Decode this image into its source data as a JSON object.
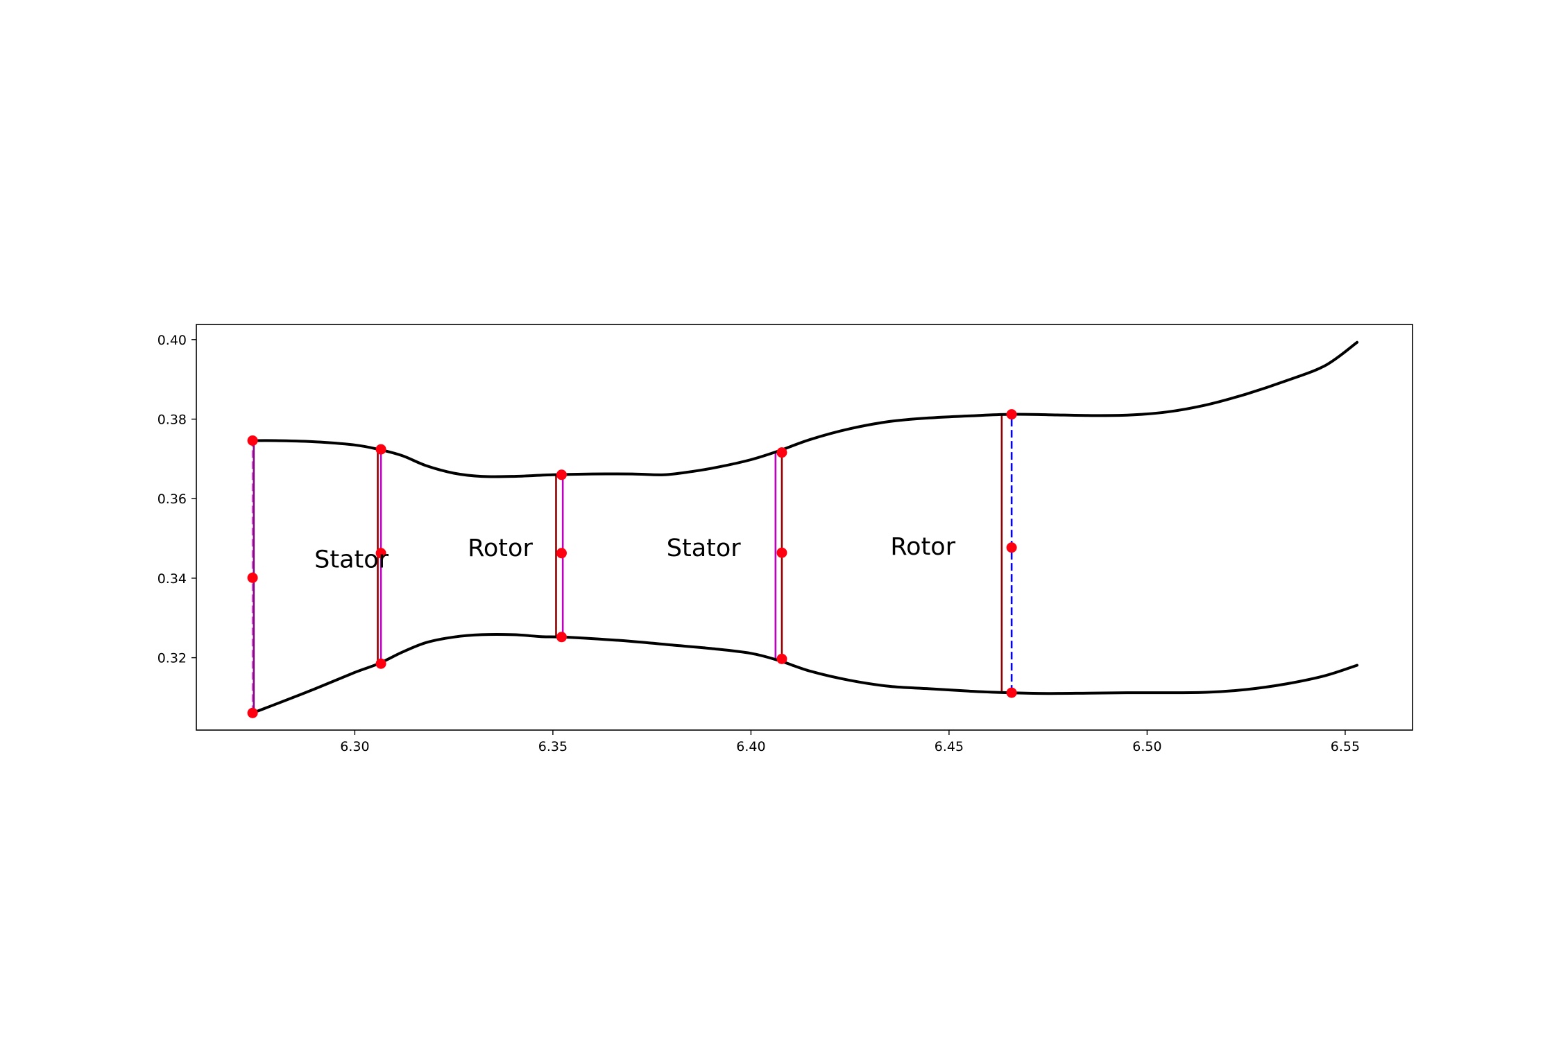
{
  "chart_data": {
    "type": "line",
    "title": "",
    "xlabel": "",
    "ylabel": "",
    "xlim": [
      6.26,
      6.567
    ],
    "ylim": [
      0.3018,
      0.4038
    ],
    "grid": false,
    "x_ticks": [
      {
        "value": 6.3,
        "label": "6.30"
      },
      {
        "value": 6.35,
        "label": "6.35"
      },
      {
        "value": 6.4,
        "label": "6.40"
      },
      {
        "value": 6.45,
        "label": "6.45"
      },
      {
        "value": 6.5,
        "label": "6.50"
      },
      {
        "value": 6.55,
        "label": "6.55"
      }
    ],
    "y_ticks": [
      {
        "value": 0.32,
        "label": "0.32"
      },
      {
        "value": 0.34,
        "label": "0.34"
      },
      {
        "value": 0.36,
        "label": "0.36"
      },
      {
        "value": 0.38,
        "label": "0.38"
      },
      {
        "value": 0.4,
        "label": "0.40"
      }
    ],
    "series": [
      {
        "id": "outer-wall",
        "color": "#000000",
        "x": [
          6.2742,
          6.28,
          6.29,
          6.3,
          6.306,
          6.312,
          6.318,
          6.325,
          6.332,
          6.34,
          6.35,
          6.36,
          6.37,
          6.378,
          6.385,
          6.392,
          6.4,
          6.407,
          6.415,
          6.425,
          6.435,
          6.445,
          6.455,
          6.465,
          6.475,
          6.485,
          6.495,
          6.505,
          6.515,
          6.525,
          6.535,
          6.545,
          6.553
        ],
        "y": [
          0.3746,
          0.3746,
          0.3743,
          0.3735,
          0.3724,
          0.3708,
          0.3683,
          0.3664,
          0.3656,
          0.3656,
          0.366,
          0.3662,
          0.3662,
          0.366,
          0.3668,
          0.368,
          0.3698,
          0.372,
          0.3749,
          0.3776,
          0.3794,
          0.3803,
          0.3808,
          0.3812,
          0.3811,
          0.3809,
          0.381,
          0.3818,
          0.3836,
          0.3863,
          0.3896,
          0.3935,
          0.3993
        ]
      },
      {
        "id": "inner-wall",
        "color": "#000000",
        "x": [
          6.2742,
          6.28,
          6.29,
          6.3,
          6.306,
          6.312,
          6.318,
          6.325,
          6.332,
          6.34,
          6.347,
          6.352,
          6.36,
          6.37,
          6.38,
          6.39,
          6.4,
          6.407,
          6.415,
          6.425,
          6.435,
          6.445,
          6.455,
          6.465,
          6.475,
          6.485,
          6.495,
          6.505,
          6.515,
          6.525,
          6.535,
          6.545,
          6.553
        ],
        "y": [
          0.3061,
          0.3083,
          0.3122,
          0.3163,
          0.3185,
          0.3214,
          0.3238,
          0.3252,
          0.3258,
          0.3258,
          0.3253,
          0.3252,
          0.3248,
          0.3241,
          0.3232,
          0.3223,
          0.3211,
          0.3193,
          0.3166,
          0.3143,
          0.3128,
          0.3122,
          0.3116,
          0.3112,
          0.311,
          0.3111,
          0.3112,
          0.3112,
          0.3113,
          0.312,
          0.3134,
          0.3155,
          0.3181
        ]
      }
    ],
    "vertical_lines": [
      {
        "x": 6.2742,
        "y0": 0.3061,
        "y1": 0.3746,
        "color": "#cc66cc",
        "style": "dashed"
      },
      {
        "x": 6.2745,
        "y0": 0.3061,
        "y1": 0.3746,
        "color": "#8b008b",
        "style": "solid"
      },
      {
        "x": 6.3058,
        "y0": 0.3185,
        "y1": 0.3724,
        "color": "#8b0000",
        "style": "solid"
      },
      {
        "x": 6.3066,
        "y0": 0.3185,
        "y1": 0.3724,
        "color": "#bf00bf",
        "style": "solid"
      },
      {
        "x": 6.3508,
        "y0": 0.3252,
        "y1": 0.366,
        "color": "#8b0000",
        "style": "solid"
      },
      {
        "x": 6.3525,
        "y0": 0.3252,
        "y1": 0.366,
        "color": "#bf00bf",
        "style": "solid"
      },
      {
        "x": 6.4062,
        "y0": 0.3197,
        "y1": 0.3716,
        "color": "#bf00bf",
        "style": "solid"
      },
      {
        "x": 6.4078,
        "y0": 0.3197,
        "y1": 0.3716,
        "color": "#8b0000",
        "style": "solid"
      },
      {
        "x": 6.4633,
        "y0": 0.3112,
        "y1": 0.3812,
        "color": "#8b0000",
        "style": "solid"
      },
      {
        "x": 6.4658,
        "y0": 0.3112,
        "y1": 0.3812,
        "color": "#0000ff",
        "style": "dashed"
      }
    ],
    "points": {
      "color": "#ff0011",
      "x": [
        6.2742,
        6.2742,
        6.2742,
        6.3066,
        6.3066,
        6.3066,
        6.3522,
        6.3522,
        6.3522,
        6.4078,
        6.4078,
        6.4078,
        6.4658,
        6.4658,
        6.4658
      ],
      "y": [
        0.3746,
        0.3401,
        0.3061,
        0.3724,
        0.3463,
        0.3185,
        0.366,
        0.3463,
        0.3252,
        0.3716,
        0.3464,
        0.3197,
        0.3812,
        0.3477,
        0.3112
      ]
    },
    "annotations": [
      {
        "text": "Stator",
        "x": 6.2898,
        "y": 0.3427
      },
      {
        "text": "Rotor",
        "x": 6.3285,
        "y": 0.3456
      },
      {
        "text": "Stator",
        "x": 6.3787,
        "y": 0.3456
      },
      {
        "text": "Rotor",
        "x": 6.4352,
        "y": 0.3459
      }
    ]
  }
}
